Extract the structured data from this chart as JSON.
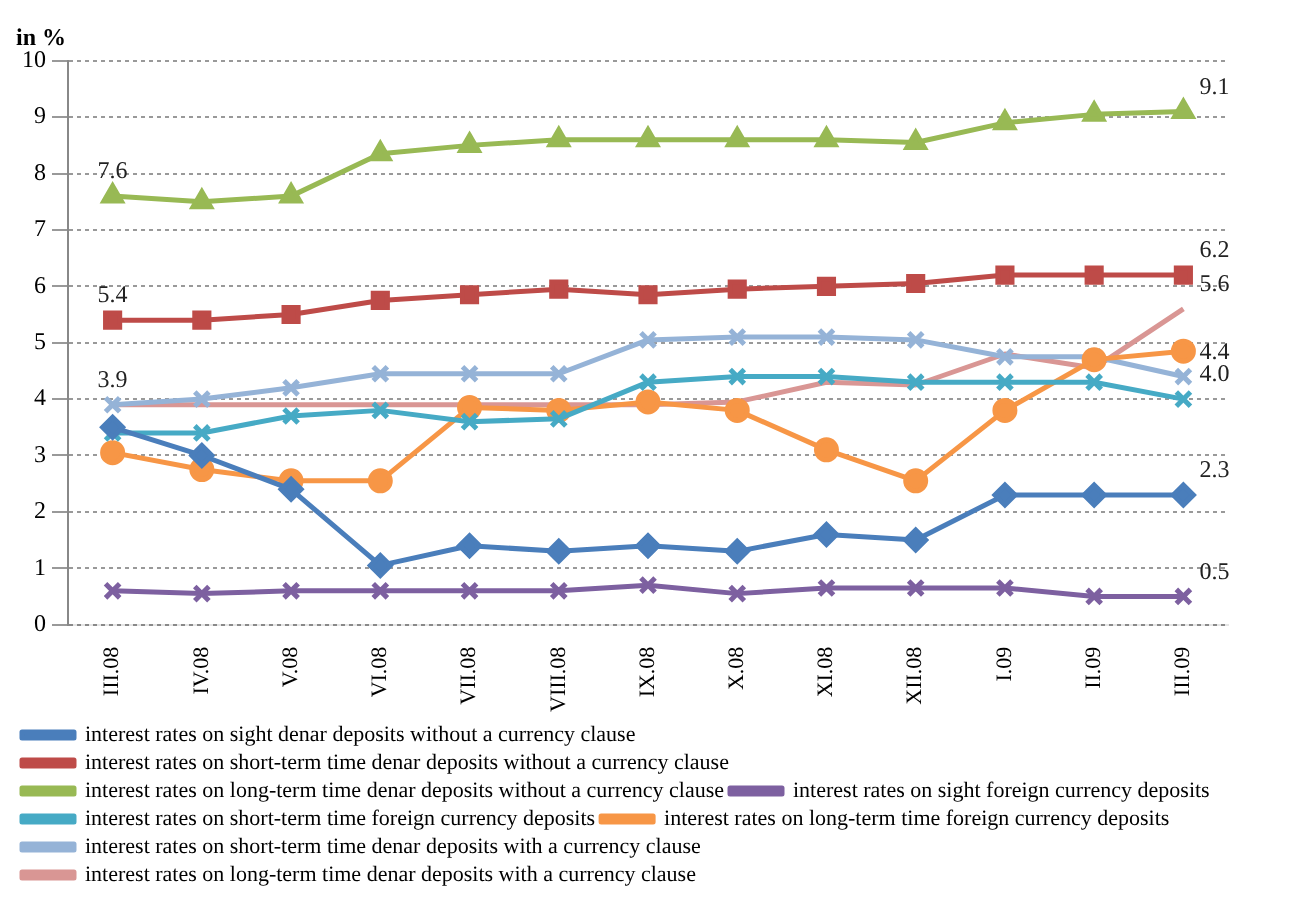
{
  "chart_data": {
    "type": "line",
    "ylabel": "in %",
    "categories": [
      "III.08",
      "IV.08",
      "V.08",
      "VI.08",
      "VII.08",
      "VIII.08",
      "IX.08",
      "X.08",
      "XI.08",
      "XII.08",
      "I.09",
      "II.09",
      "III.09"
    ],
    "ylim": [
      0,
      10
    ],
    "yticks": [
      0,
      1,
      2,
      3,
      4,
      5,
      6,
      7,
      8,
      9,
      10
    ],
    "grid": "y",
    "legend": "bottom",
    "series": [
      {
        "name": "interest rates on sight denar deposits without a currency clause",
        "color": "#4a7ebb",
        "marker": "diamond",
        "values": [
          3.5,
          3.0,
          2.4,
          1.05,
          1.4,
          1.3,
          1.4,
          1.3,
          1.6,
          1.5,
          2.3,
          2.3,
          2.3
        ],
        "value_labels": [
          null,
          null,
          null,
          null,
          null,
          null,
          null,
          null,
          null,
          null,
          null,
          null,
          "2.3"
        ]
      },
      {
        "name": "interest rates on short-term time denar deposits without a currency clause",
        "color": "#be4b48",
        "marker": "square",
        "values": [
          5.4,
          5.4,
          5.5,
          5.75,
          5.85,
          5.95,
          5.85,
          5.95,
          6.0,
          6.05,
          6.2,
          6.2,
          6.2
        ],
        "value_labels": [
          "5.4",
          null,
          null,
          null,
          null,
          null,
          null,
          null,
          null,
          null,
          null,
          null,
          "6.2"
        ]
      },
      {
        "name": "interest rates on long-term time denar deposits without a currency clause",
        "color": "#98b954",
        "marker": "triangle",
        "values": [
          7.6,
          7.5,
          7.6,
          8.35,
          8.5,
          8.6,
          8.6,
          8.6,
          8.6,
          8.55,
          8.9,
          9.05,
          9.1
        ],
        "value_labels": [
          "7.6",
          null,
          null,
          null,
          null,
          null,
          null,
          null,
          null,
          null,
          null,
          null,
          "9.1"
        ]
      },
      {
        "name": "interest rates on sight foreign currency deposits",
        "color": "#7d60a0",
        "marker": "cross",
        "values": [
          0.6,
          0.55,
          0.6,
          0.6,
          0.6,
          0.6,
          0.7,
          0.55,
          0.65,
          0.65,
          0.65,
          0.5,
          0.5
        ],
        "value_labels": [
          null,
          null,
          null,
          null,
          null,
          null,
          null,
          null,
          null,
          null,
          null,
          null,
          "0.5"
        ]
      },
      {
        "name": "interest rates on short-term time foreign currency deposits",
        "color": "#46aac5",
        "marker": "cross",
        "values": [
          3.4,
          3.4,
          3.7,
          3.8,
          3.6,
          3.65,
          4.3,
          4.4,
          4.4,
          4.3,
          4.3,
          4.3,
          4.0
        ],
        "value_labels": [
          null,
          null,
          null,
          null,
          null,
          null,
          null,
          null,
          null,
          null,
          null,
          null,
          "4.0"
        ]
      },
      {
        "name": "interest rates on long-term time foreign currency deposits",
        "color": "#f79646",
        "marker": "circle",
        "values": [
          3.05,
          2.75,
          2.55,
          2.55,
          3.85,
          3.8,
          3.95,
          3.8,
          3.1,
          2.55,
          3.8,
          4.7,
          4.85
        ]
      },
      {
        "name": "interest rates on short-term time denar deposits with a currency clause",
        "color": "#95b3d7",
        "marker": "cross",
        "values": [
          3.9,
          4.0,
          4.2,
          4.45,
          4.45,
          4.45,
          5.05,
          5.1,
          5.1,
          5.05,
          4.75,
          4.75,
          4.4
        ],
        "value_labels": [
          "3.9",
          null,
          null,
          null,
          null,
          null,
          null,
          null,
          null,
          null,
          null,
          null,
          "4.4"
        ]
      },
      {
        "name": "interest rates on long-term time denar deposits with a currency clause",
        "color": "#d99694",
        "marker": "none",
        "values": [
          3.9,
          3.9,
          3.9,
          3.9,
          3.9,
          3.9,
          3.9,
          3.95,
          4.3,
          4.25,
          4.8,
          4.55,
          5.6
        ],
        "value_labels": [
          null,
          null,
          null,
          null,
          null,
          null,
          null,
          null,
          null,
          null,
          null,
          null,
          "5.6"
        ]
      }
    ]
  }
}
